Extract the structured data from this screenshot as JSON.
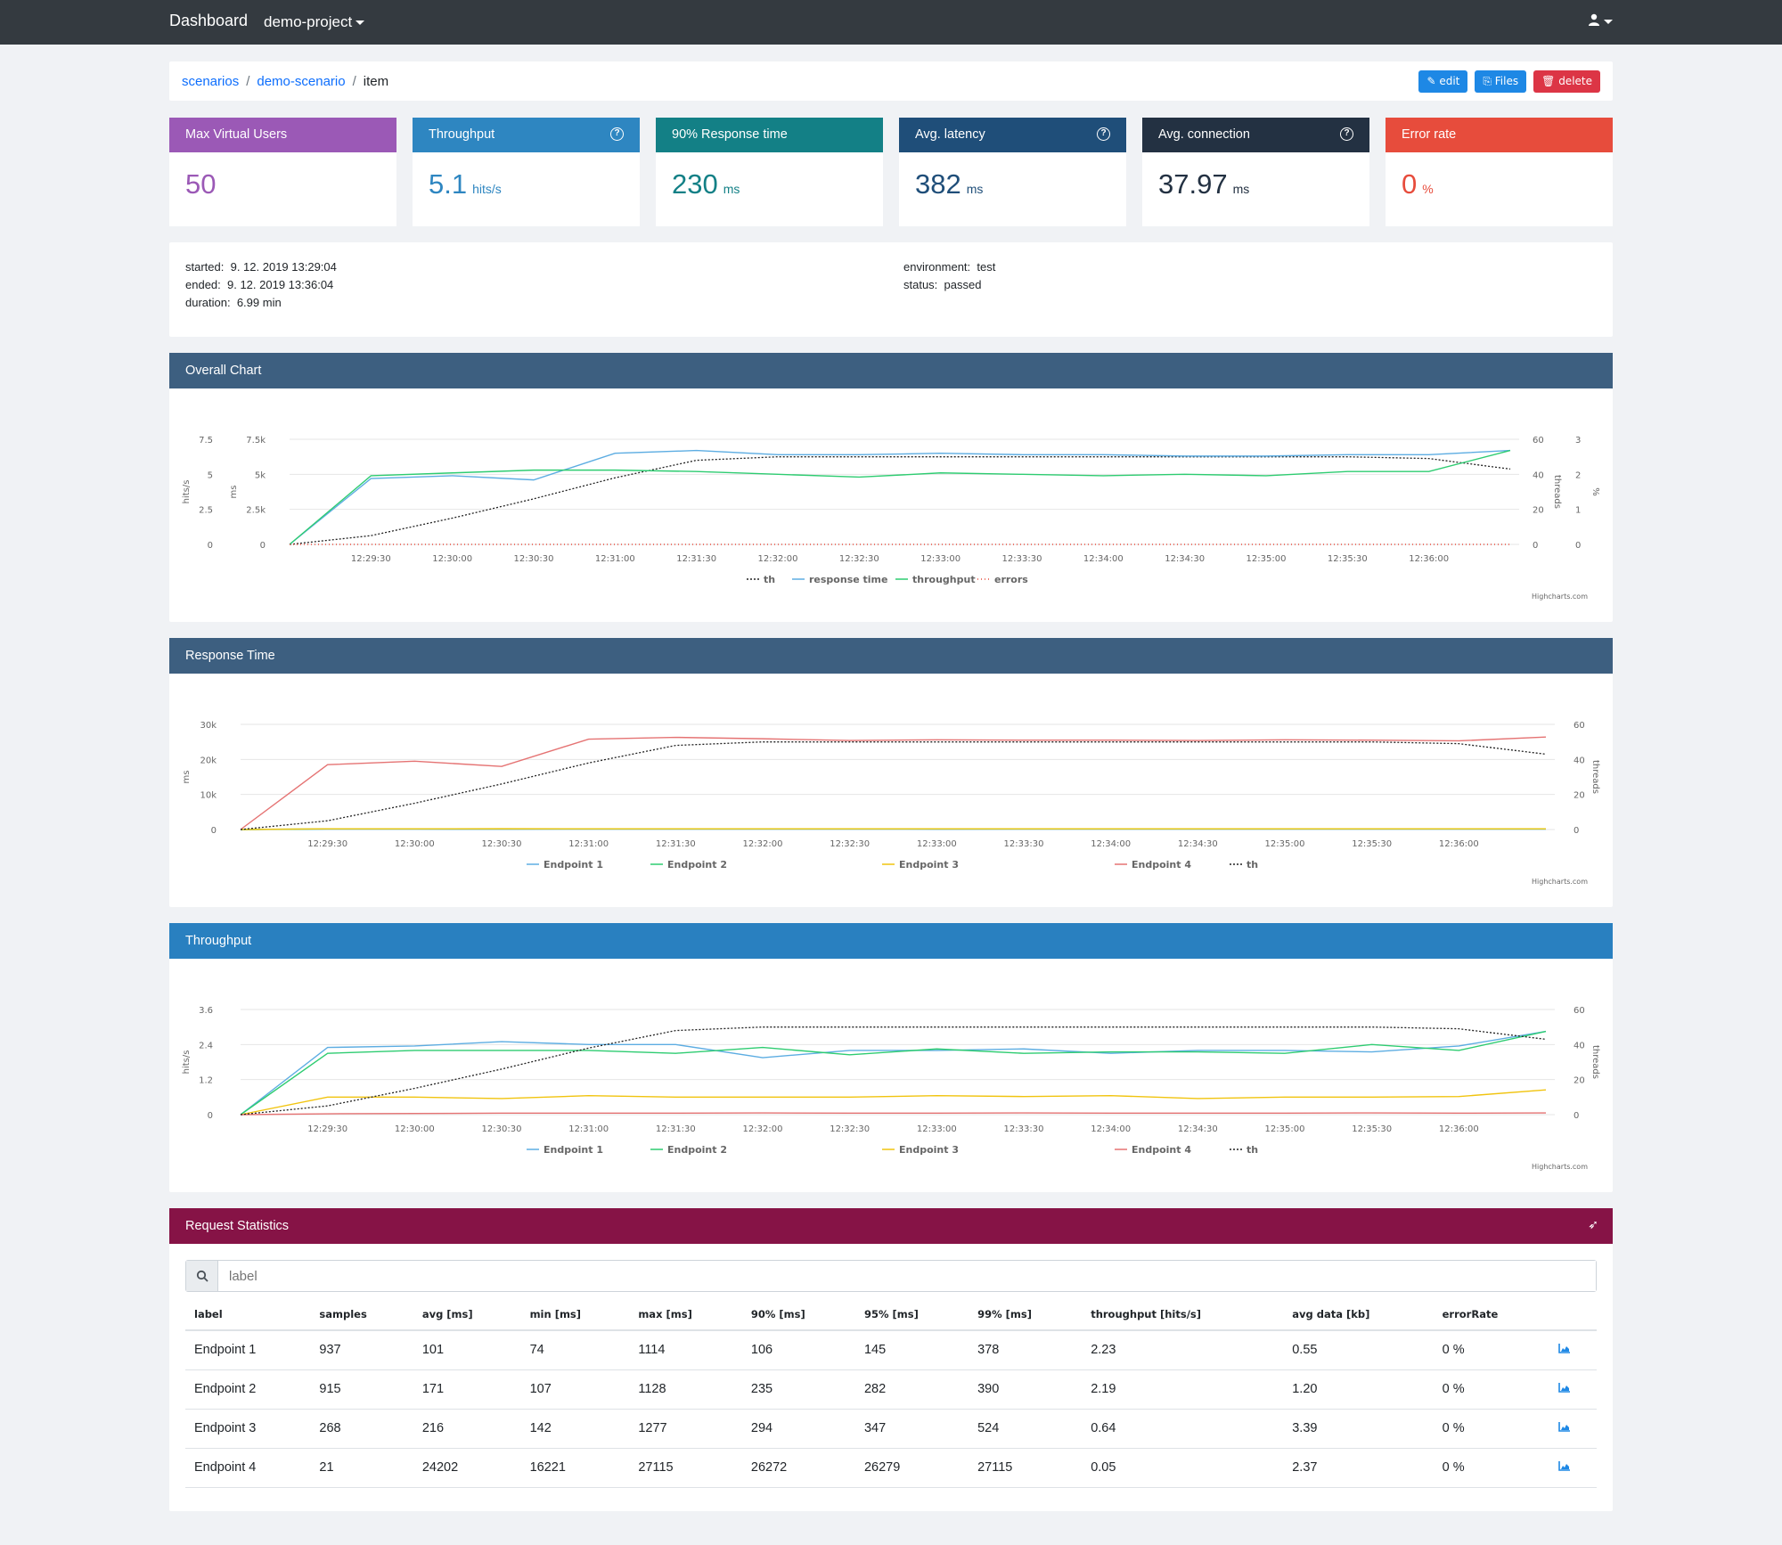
{
  "nav": {
    "brand": "Dashboard",
    "project": "demo-project"
  },
  "breadcrumb": {
    "scenarios": "scenarios",
    "scenario": "demo-scenario",
    "item": "item"
  },
  "actions": {
    "edit": "edit",
    "files": "Files",
    "delete": "delete"
  },
  "kpis": [
    {
      "title": "Max Virtual Users",
      "value": "50",
      "unit": "",
      "color": "#9b59b6"
    },
    {
      "title": "Throughput",
      "value": "5.1",
      "unit": "hits/s",
      "color": "#2e86c1"
    },
    {
      "title": "90% Response time",
      "value": "230",
      "unit": "ms",
      "color": "#138086"
    },
    {
      "title": "Avg. latency",
      "value": "382",
      "unit": "ms",
      "color": "#1f4e79"
    },
    {
      "title": "Avg. connection",
      "value": "37.97",
      "unit": "ms",
      "color": "#233142"
    },
    {
      "title": "Error rate",
      "value": "0",
      "unit": "%",
      "color": "#e74c3c"
    }
  ],
  "info": {
    "started_label": "started:",
    "started": "9. 12. 2019 13:29:04",
    "ended_label": "ended:",
    "ended": "9. 12. 2019 13:36:04",
    "duration_label": "duration:",
    "duration": "6.99 min",
    "environment_label": "environment:",
    "environment": "test",
    "status_label": "status:",
    "status": "passed"
  },
  "panels": {
    "overall": "Overall Chart",
    "response": "Response Time",
    "throughput": "Throughput",
    "stats": "Request Statistics"
  },
  "credits": "Highcharts.com",
  "chart_data": [
    {
      "type": "line",
      "x": [
        "12:29:04",
        "12:29:30",
        "12:30:00",
        "12:30:30",
        "12:31:00",
        "12:31:30",
        "12:32:00",
        "12:32:30",
        "12:33:00",
        "12:33:30",
        "12:34:00",
        "12:34:30",
        "12:35:00",
        "12:35:30",
        "12:36:00",
        "12:36:04"
      ],
      "xticks": [
        "12:29:30",
        "12:30:00",
        "12:30:30",
        "12:31:00",
        "12:31:30",
        "12:32:00",
        "12:32:30",
        "12:33:00",
        "12:33:30",
        "12:34:00",
        "12:34:30",
        "12:35:00",
        "12:35:30",
        "12:36:00"
      ],
      "axes": {
        "hits": {
          "label": "hits/s",
          "ticks": [
            "0",
            "2.5",
            "5",
            "7.5"
          ],
          "max": 7.5
        },
        "ms": {
          "label": "ms",
          "ticks": [
            "0",
            "2.5k",
            "5k",
            "7.5k"
          ],
          "max": 7500
        },
        "threads": {
          "label": "threads",
          "ticks": [
            "0",
            "20",
            "40",
            "60"
          ],
          "max": 60
        },
        "pct": {
          "label": "%",
          "ticks": [
            "0",
            "1",
            "2",
            "3"
          ],
          "max": 3
        }
      },
      "series": [
        {
          "name": "th",
          "axis": "threads",
          "color": "#222222",
          "dash": true,
          "values": [
            0,
            5,
            15,
            26,
            38,
            48,
            50,
            50,
            50,
            50,
            50,
            50,
            50,
            50,
            49,
            43
          ]
        },
        {
          "name": "response time",
          "axis": "ms",
          "color": "#5dade2",
          "dash": false,
          "values": [
            0,
            4700,
            4900,
            4600,
            6500,
            6700,
            6400,
            6400,
            6500,
            6400,
            6400,
            6300,
            6300,
            6400,
            6400,
            6700
          ]
        },
        {
          "name": "throughput",
          "axis": "hits",
          "color": "#2ecc71",
          "dash": false,
          "values": [
            0,
            4.9,
            5.1,
            5.3,
            5.3,
            5.2,
            5.0,
            4.8,
            5.1,
            5.0,
            4.9,
            5.0,
            4.9,
            5.2,
            5.2,
            6.7
          ]
        },
        {
          "name": "errors",
          "axis": "pct",
          "color": "#e74c3c",
          "dash": "dot",
          "values": [
            0,
            0,
            0,
            0,
            0,
            0,
            0,
            0,
            0,
            0,
            0,
            0,
            0,
            0,
            0,
            0
          ]
        }
      ]
    },
    {
      "type": "line",
      "x": [
        "12:29:04",
        "12:29:30",
        "12:30:00",
        "12:30:30",
        "12:31:00",
        "12:31:30",
        "12:32:00",
        "12:32:30",
        "12:33:00",
        "12:33:30",
        "12:34:00",
        "12:34:30",
        "12:35:00",
        "12:35:30",
        "12:36:00",
        "12:36:04"
      ],
      "xticks": [
        "12:29:30",
        "12:30:00",
        "12:30:30",
        "12:31:00",
        "12:31:30",
        "12:32:00",
        "12:32:30",
        "12:33:00",
        "12:33:30",
        "12:34:00",
        "12:34:30",
        "12:35:00",
        "12:35:30",
        "12:36:00"
      ],
      "axes": {
        "ms": {
          "label": "ms",
          "ticks": [
            "0",
            "10k",
            "20k",
            "30k"
          ],
          "max": 30000
        },
        "threads": {
          "label": "threads",
          "ticks": [
            "0",
            "20",
            "40",
            "60"
          ],
          "max": 60
        }
      },
      "series": [
        {
          "name": "Endpoint 1",
          "axis": "ms",
          "color": "#5dade2",
          "dash": false,
          "values": [
            0,
            110,
            100,
            95,
            100,
            105,
            100,
            100,
            98,
            100,
            101,
            100,
            100,
            102,
            100,
            101
          ]
        },
        {
          "name": "Endpoint 2",
          "axis": "ms",
          "color": "#2ecc71",
          "dash": false,
          "values": [
            0,
            170,
            172,
            168,
            171,
            170,
            172,
            171,
            170,
            172,
            171,
            170,
            171,
            172,
            170,
            171
          ]
        },
        {
          "name": "Endpoint 3",
          "axis": "ms",
          "color": "#f1c40f",
          "dash": false,
          "values": [
            0,
            210,
            215,
            220,
            218,
            214,
            216,
            216,
            217,
            215,
            216,
            218,
            214,
            216,
            217,
            216
          ]
        },
        {
          "name": "Endpoint 4",
          "axis": "ms",
          "color": "#e57373",
          "dash": false,
          "values": [
            0,
            18500,
            19500,
            18000,
            25800,
            26300,
            25900,
            25400,
            25600,
            25500,
            25500,
            25400,
            25600,
            25500,
            25300,
            26400
          ]
        },
        {
          "name": "th",
          "axis": "threads",
          "color": "#222222",
          "dash": true,
          "values": [
            0,
            5,
            15,
            26,
            38,
            48,
            50,
            50,
            50,
            50,
            50,
            50,
            50,
            50,
            49,
            43
          ]
        }
      ]
    },
    {
      "type": "line",
      "x": [
        "12:29:04",
        "12:29:30",
        "12:30:00",
        "12:30:30",
        "12:31:00",
        "12:31:30",
        "12:32:00",
        "12:32:30",
        "12:33:00",
        "12:33:30",
        "12:34:00",
        "12:34:30",
        "12:35:00",
        "12:35:30",
        "12:36:00",
        "12:36:04"
      ],
      "xticks": [
        "12:29:30",
        "12:30:00",
        "12:30:30",
        "12:31:00",
        "12:31:30",
        "12:32:00",
        "12:32:30",
        "12:33:00",
        "12:33:30",
        "12:34:00",
        "12:34:30",
        "12:35:00",
        "12:35:30",
        "12:36:00"
      ],
      "axes": {
        "hits": {
          "label": "hits/s",
          "ticks": [
            "0",
            "1.2",
            "2.4",
            "3.6"
          ],
          "max": 3.6
        },
        "threads": {
          "label": "threads",
          "ticks": [
            "0",
            "20",
            "40",
            "60"
          ],
          "max": 60
        }
      },
      "series": [
        {
          "name": "Endpoint 1",
          "axis": "hits",
          "color": "#5dade2",
          "dash": false,
          "values": [
            0,
            2.3,
            2.35,
            2.5,
            2.4,
            2.4,
            1.95,
            2.2,
            2.2,
            2.25,
            2.1,
            2.2,
            2.2,
            2.15,
            2.35,
            2.85
          ]
        },
        {
          "name": "Endpoint 2",
          "axis": "hits",
          "color": "#2ecc71",
          "dash": false,
          "values": [
            0,
            2.1,
            2.2,
            2.2,
            2.2,
            2.1,
            2.3,
            2.05,
            2.25,
            2.1,
            2.15,
            2.15,
            2.1,
            2.4,
            2.2,
            2.85
          ]
        },
        {
          "name": "Endpoint 3",
          "axis": "hits",
          "color": "#f1c40f",
          "dash": false,
          "values": [
            0,
            0.6,
            0.6,
            0.55,
            0.65,
            0.6,
            0.6,
            0.6,
            0.65,
            0.62,
            0.65,
            0.55,
            0.6,
            0.6,
            0.62,
            0.85
          ]
        },
        {
          "name": "Endpoint 4",
          "axis": "hits",
          "color": "#e57373",
          "dash": false,
          "values": [
            0,
            0.03,
            0.04,
            0.05,
            0.05,
            0.05,
            0.06,
            0.05,
            0.05,
            0.06,
            0.05,
            0.05,
            0.05,
            0.06,
            0.05,
            0.06
          ]
        },
        {
          "name": "th",
          "axis": "threads",
          "color": "#222222",
          "dash": true,
          "values": [
            0,
            5,
            15,
            26,
            38,
            48,
            50,
            50,
            50,
            50,
            50,
            50,
            50,
            50,
            49,
            43
          ]
        }
      ]
    }
  ],
  "stats": {
    "search_placeholder": "label",
    "columns": [
      "label",
      "samples",
      "avg [ms]",
      "min [ms]",
      "max [ms]",
      "90% [ms]",
      "95% [ms]",
      "99% [ms]",
      "throughput [hits/s]",
      "avg data [kb]",
      "errorRate"
    ],
    "rows": [
      [
        "Endpoint 1",
        "937",
        "101",
        "74",
        "1114",
        "106",
        "145",
        "378",
        "2.23",
        "0.55",
        "0 %"
      ],
      [
        "Endpoint 2",
        "915",
        "171",
        "107",
        "1128",
        "235",
        "282",
        "390",
        "2.19",
        "1.20",
        "0 %"
      ],
      [
        "Endpoint 3",
        "268",
        "216",
        "142",
        "1277",
        "294",
        "347",
        "524",
        "0.64",
        "3.39",
        "0 %"
      ],
      [
        "Endpoint 4",
        "21",
        "24202",
        "16221",
        "27115",
        "26272",
        "26279",
        "27115",
        "0.05",
        "2.37",
        "0 %"
      ]
    ]
  }
}
